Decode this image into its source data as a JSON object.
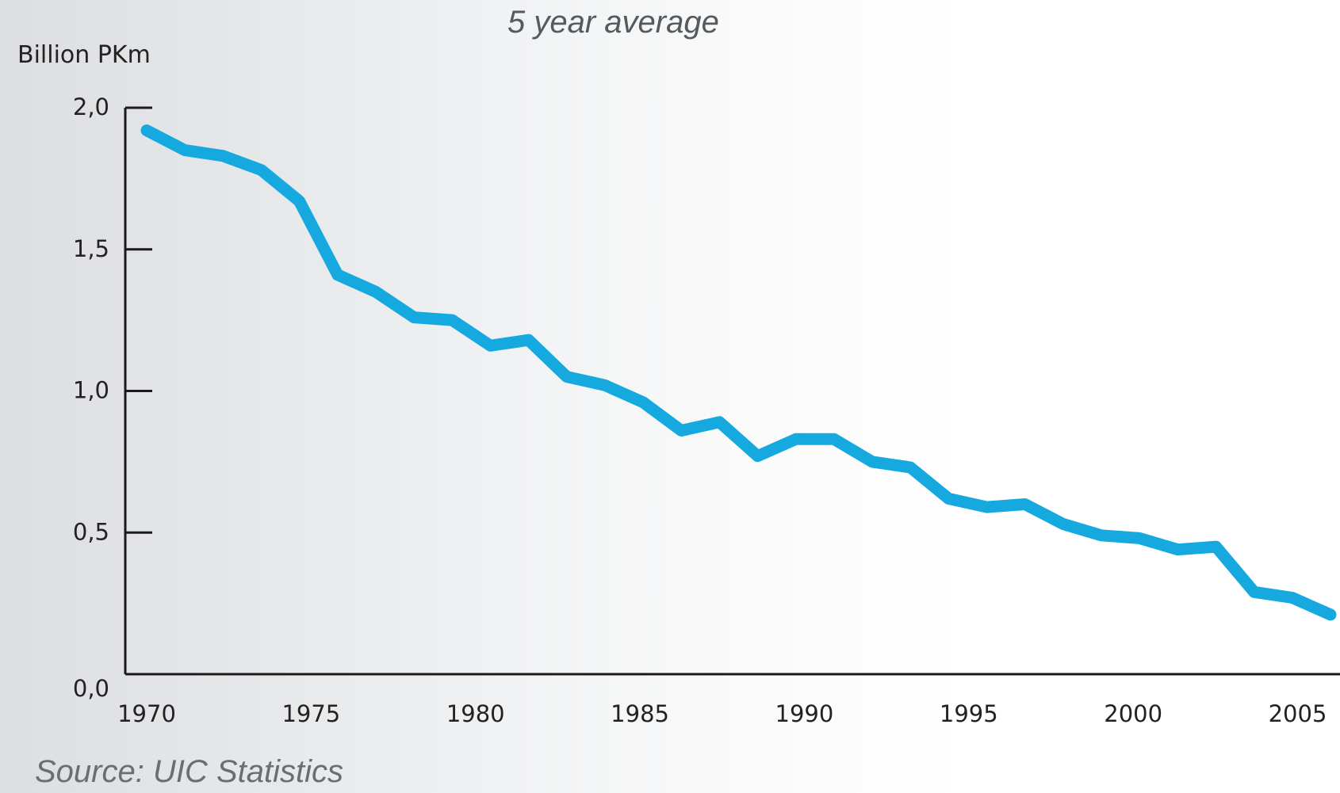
{
  "chart_data": {
    "type": "line",
    "subtitle": "5 year average",
    "ylabel": "Billion PKm",
    "source": "Source: UIC Statistics",
    "xlim": [
      1970,
      2006
    ],
    "ylim": [
      0,
      2
    ],
    "x_ticks": [
      1970,
      1975,
      1980,
      1985,
      1990,
      1995,
      2000,
      2005
    ],
    "x_tick_labels": [
      "1970",
      "1975",
      "1980",
      "1985",
      "1990",
      "1995",
      "2000",
      "2005"
    ],
    "y_ticks": [
      0,
      0.5,
      1,
      1.5,
      2
    ],
    "y_tick_labels": [
      "0,0",
      "0,5",
      "1,0",
      "1,5",
      "2,0"
    ],
    "grid": false,
    "line_color": "#15a9e0",
    "series": [
      {
        "x": [
          1970,
          1971,
          1972,
          1973,
          1974,
          1975,
          1976,
          1977,
          1978,
          1979,
          1980,
          1981,
          1982,
          1983,
          1984,
          1985,
          1986,
          1987,
          1988,
          1989,
          1990,
          1991,
          1992,
          1993,
          1994,
          1995,
          1996,
          1997,
          1998,
          1999,
          2000,
          2001,
          2002,
          2003,
          2004,
          2005,
          2006
        ],
        "y": [
          1.92,
          1.85,
          1.83,
          1.78,
          1.67,
          1.41,
          1.35,
          1.26,
          1.25,
          1.16,
          1.18,
          1.05,
          1.02,
          0.96,
          0.86,
          0.89,
          0.77,
          0.83,
          0.83,
          0.75,
          0.73,
          0.62,
          0.59,
          0.6,
          0.53,
          0.49,
          0.48,
          0.44,
          0.45,
          0.29,
          0.27,
          0.21,
          null,
          null,
          null,
          null,
          null
        ]
      }
    ]
  }
}
